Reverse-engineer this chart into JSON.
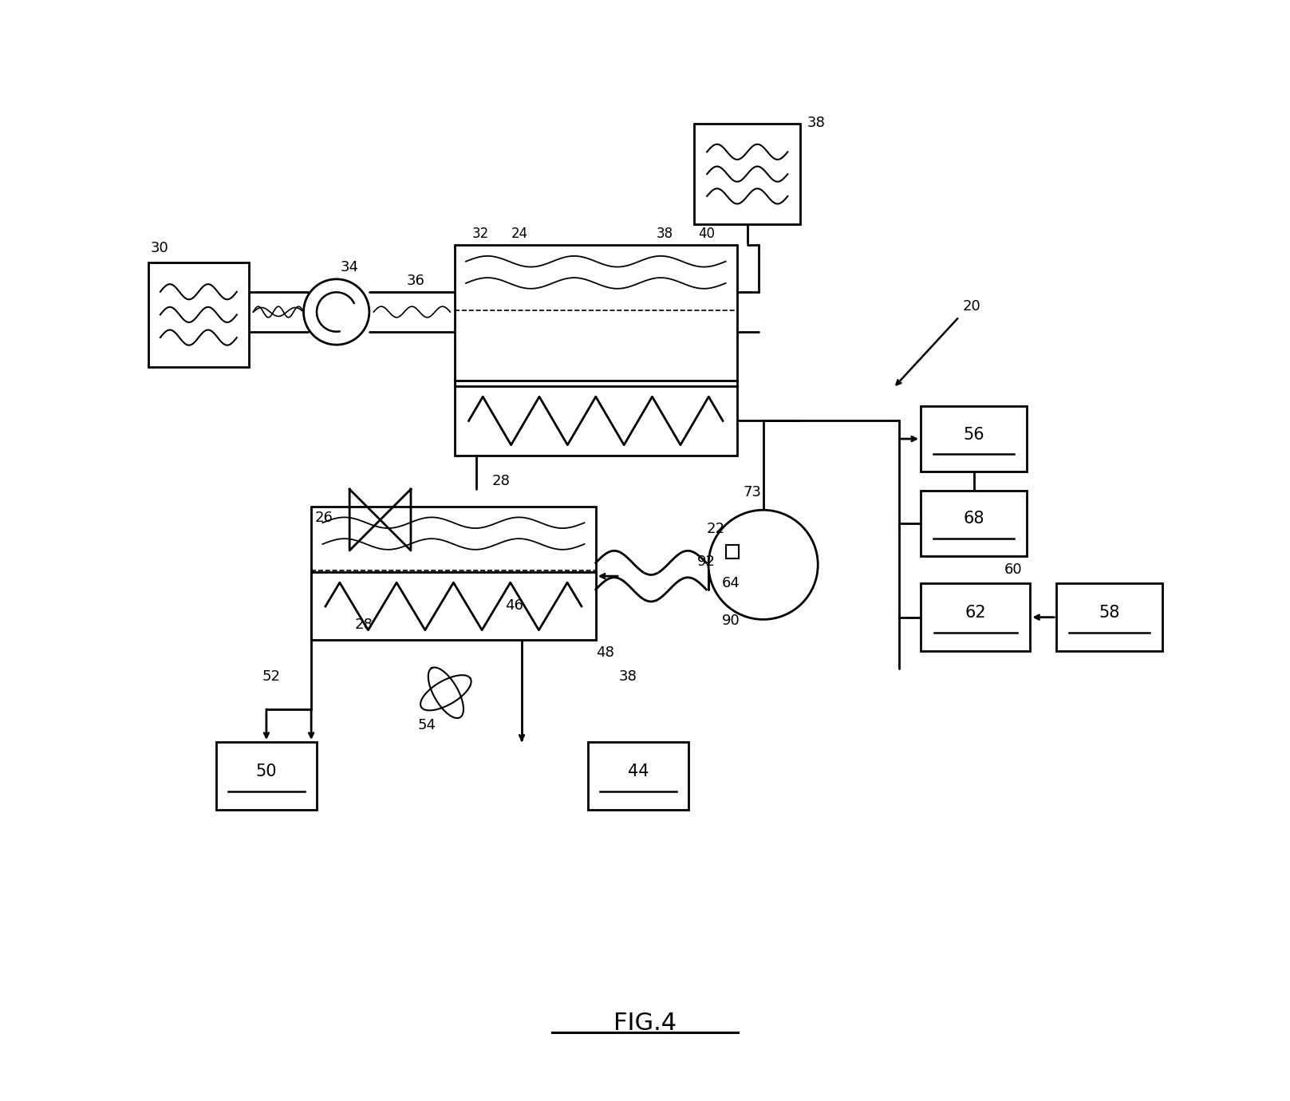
{
  "bg": "#ffffff",
  "lc": "#000000",
  "title": "FIG.4"
}
